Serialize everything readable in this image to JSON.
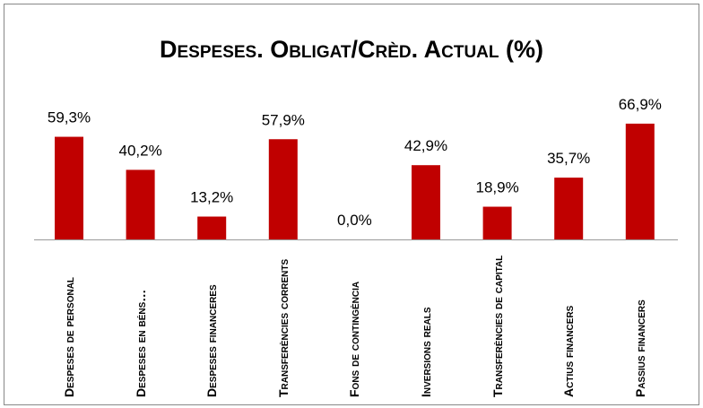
{
  "chart_data": {
    "type": "bar",
    "title": "Despeses. Obligat/Crèd. Actual (%)",
    "categories": [
      "Despeses de personal",
      "Despeses en béns…",
      "Despeses financeres",
      "Transferències corrents",
      "Fons de contingència",
      "Inversions reals",
      "Transferències de capital",
      "Actius financers",
      "Passius financers"
    ],
    "values": [
      59.3,
      40.2,
      13.2,
      57.9,
      0.0,
      42.9,
      18.9,
      35.7,
      66.9
    ],
    "value_labels": [
      "59,3%",
      "40,2%",
      "13,2%",
      "57,9%",
      "0,0%",
      "42,9%",
      "18,9%",
      "35,7%",
      "66,9%"
    ],
    "color": "#c00000"
  }
}
